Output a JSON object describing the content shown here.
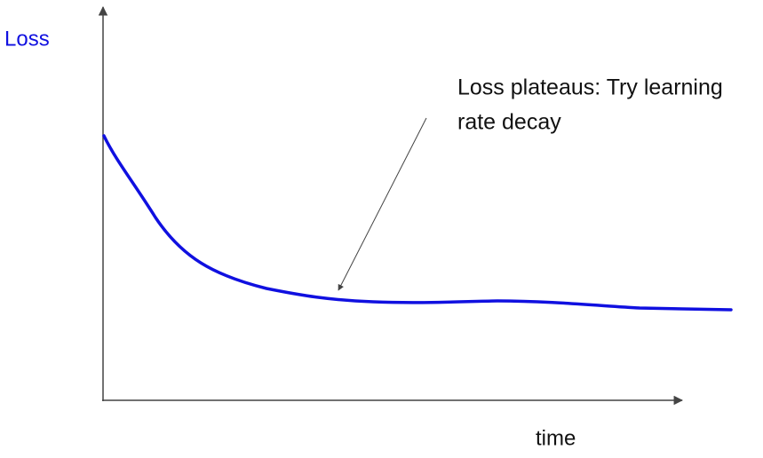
{
  "y_label": "Loss",
  "x_label": "time",
  "annotation": {
    "lines": [
      "Loss plateaus: Try learning",
      "rate decay"
    ]
  }
}
